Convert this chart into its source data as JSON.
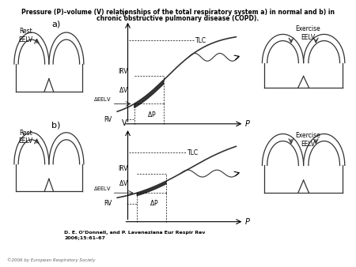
{
  "title_line1": "Pressure (P)–volume (V) relationships of the total respiratory system a) in normal and b) in",
  "title_line2": "chronic obstructive pulmonary disease (COPD).",
  "citation": "D. E. O’Donnell, and P. Laveneziana Eur Respir Rev\n2006;15:61–67",
  "copyright": "©2006 by European Respiratory Society",
  "bg_color": "#ffffff",
  "text_color": "#000000",
  "curve_color": "#333333",
  "fill_color": "#444444"
}
